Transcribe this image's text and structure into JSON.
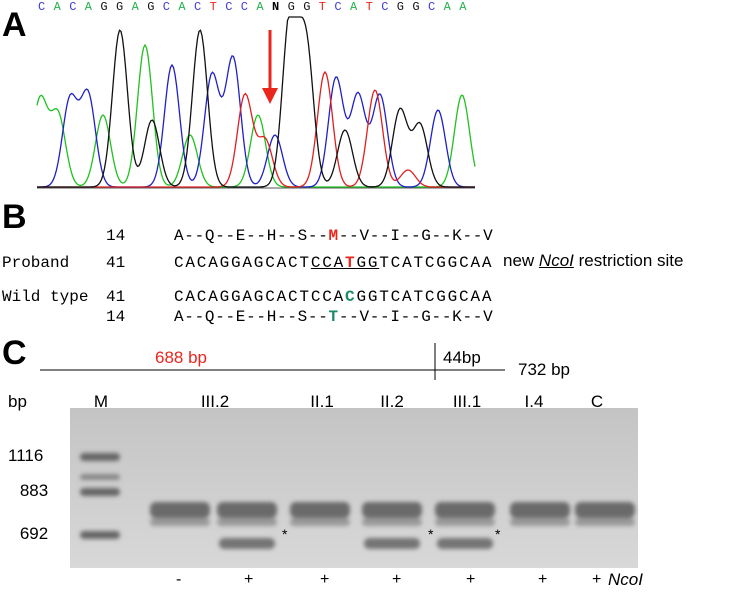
{
  "panel_a": {
    "label": "A",
    "sequence": [
      "C",
      "A",
      "C",
      "A",
      "G",
      "G",
      "A",
      "G",
      "C",
      "A",
      "C",
      "T",
      "C",
      "C",
      "A",
      "N",
      "G",
      "G",
      "T",
      "C",
      "A",
      "T",
      "C",
      "G",
      "G",
      "C",
      "A",
      "A"
    ]
  },
  "panel_b": {
    "label": "B",
    "top_protein": {
      "number": 14,
      "segments": [
        "A--Q--E--H--S--",
        "M",
        "--V--I--G--K--V"
      ]
    },
    "proband": {
      "name": "Proband",
      "number": 41,
      "segments": [
        "CACAGGAGCACT",
        "CCA",
        "T",
        "GG",
        "TCATCGGCAA"
      ]
    },
    "site_note": [
      "new",
      "NcoI",
      "restriction site"
    ],
    "wild_type": {
      "name": "Wild type",
      "number": 41,
      "segments": [
        "CACAGGAGCACTCCA",
        "C",
        "GGTCATCGGCAA"
      ]
    },
    "bottom_protein": {
      "number": 14,
      "segments": [
        "A--Q--E--H--S--",
        "T",
        "--V--I--G--K--V"
      ]
    }
  },
  "panel_c": {
    "label": "C",
    "map": {
      "fragment_1": "688 bp",
      "fragment_2": "44bp",
      "total": "732 bp"
    },
    "bp_label": "bp",
    "lanes": [
      "M",
      "III.2",
      "II.1",
      "II.2",
      "III.1",
      "I.4",
      "C"
    ],
    "size_markers": [
      1116,
      883,
      692
    ],
    "asterisks": [
      "*",
      "*",
      "*"
    ],
    "digest_labels": [
      "-",
      "+",
      "+",
      "+",
      "+",
      "+",
      "+"
    ],
    "enzyme": "NcoI"
  }
}
